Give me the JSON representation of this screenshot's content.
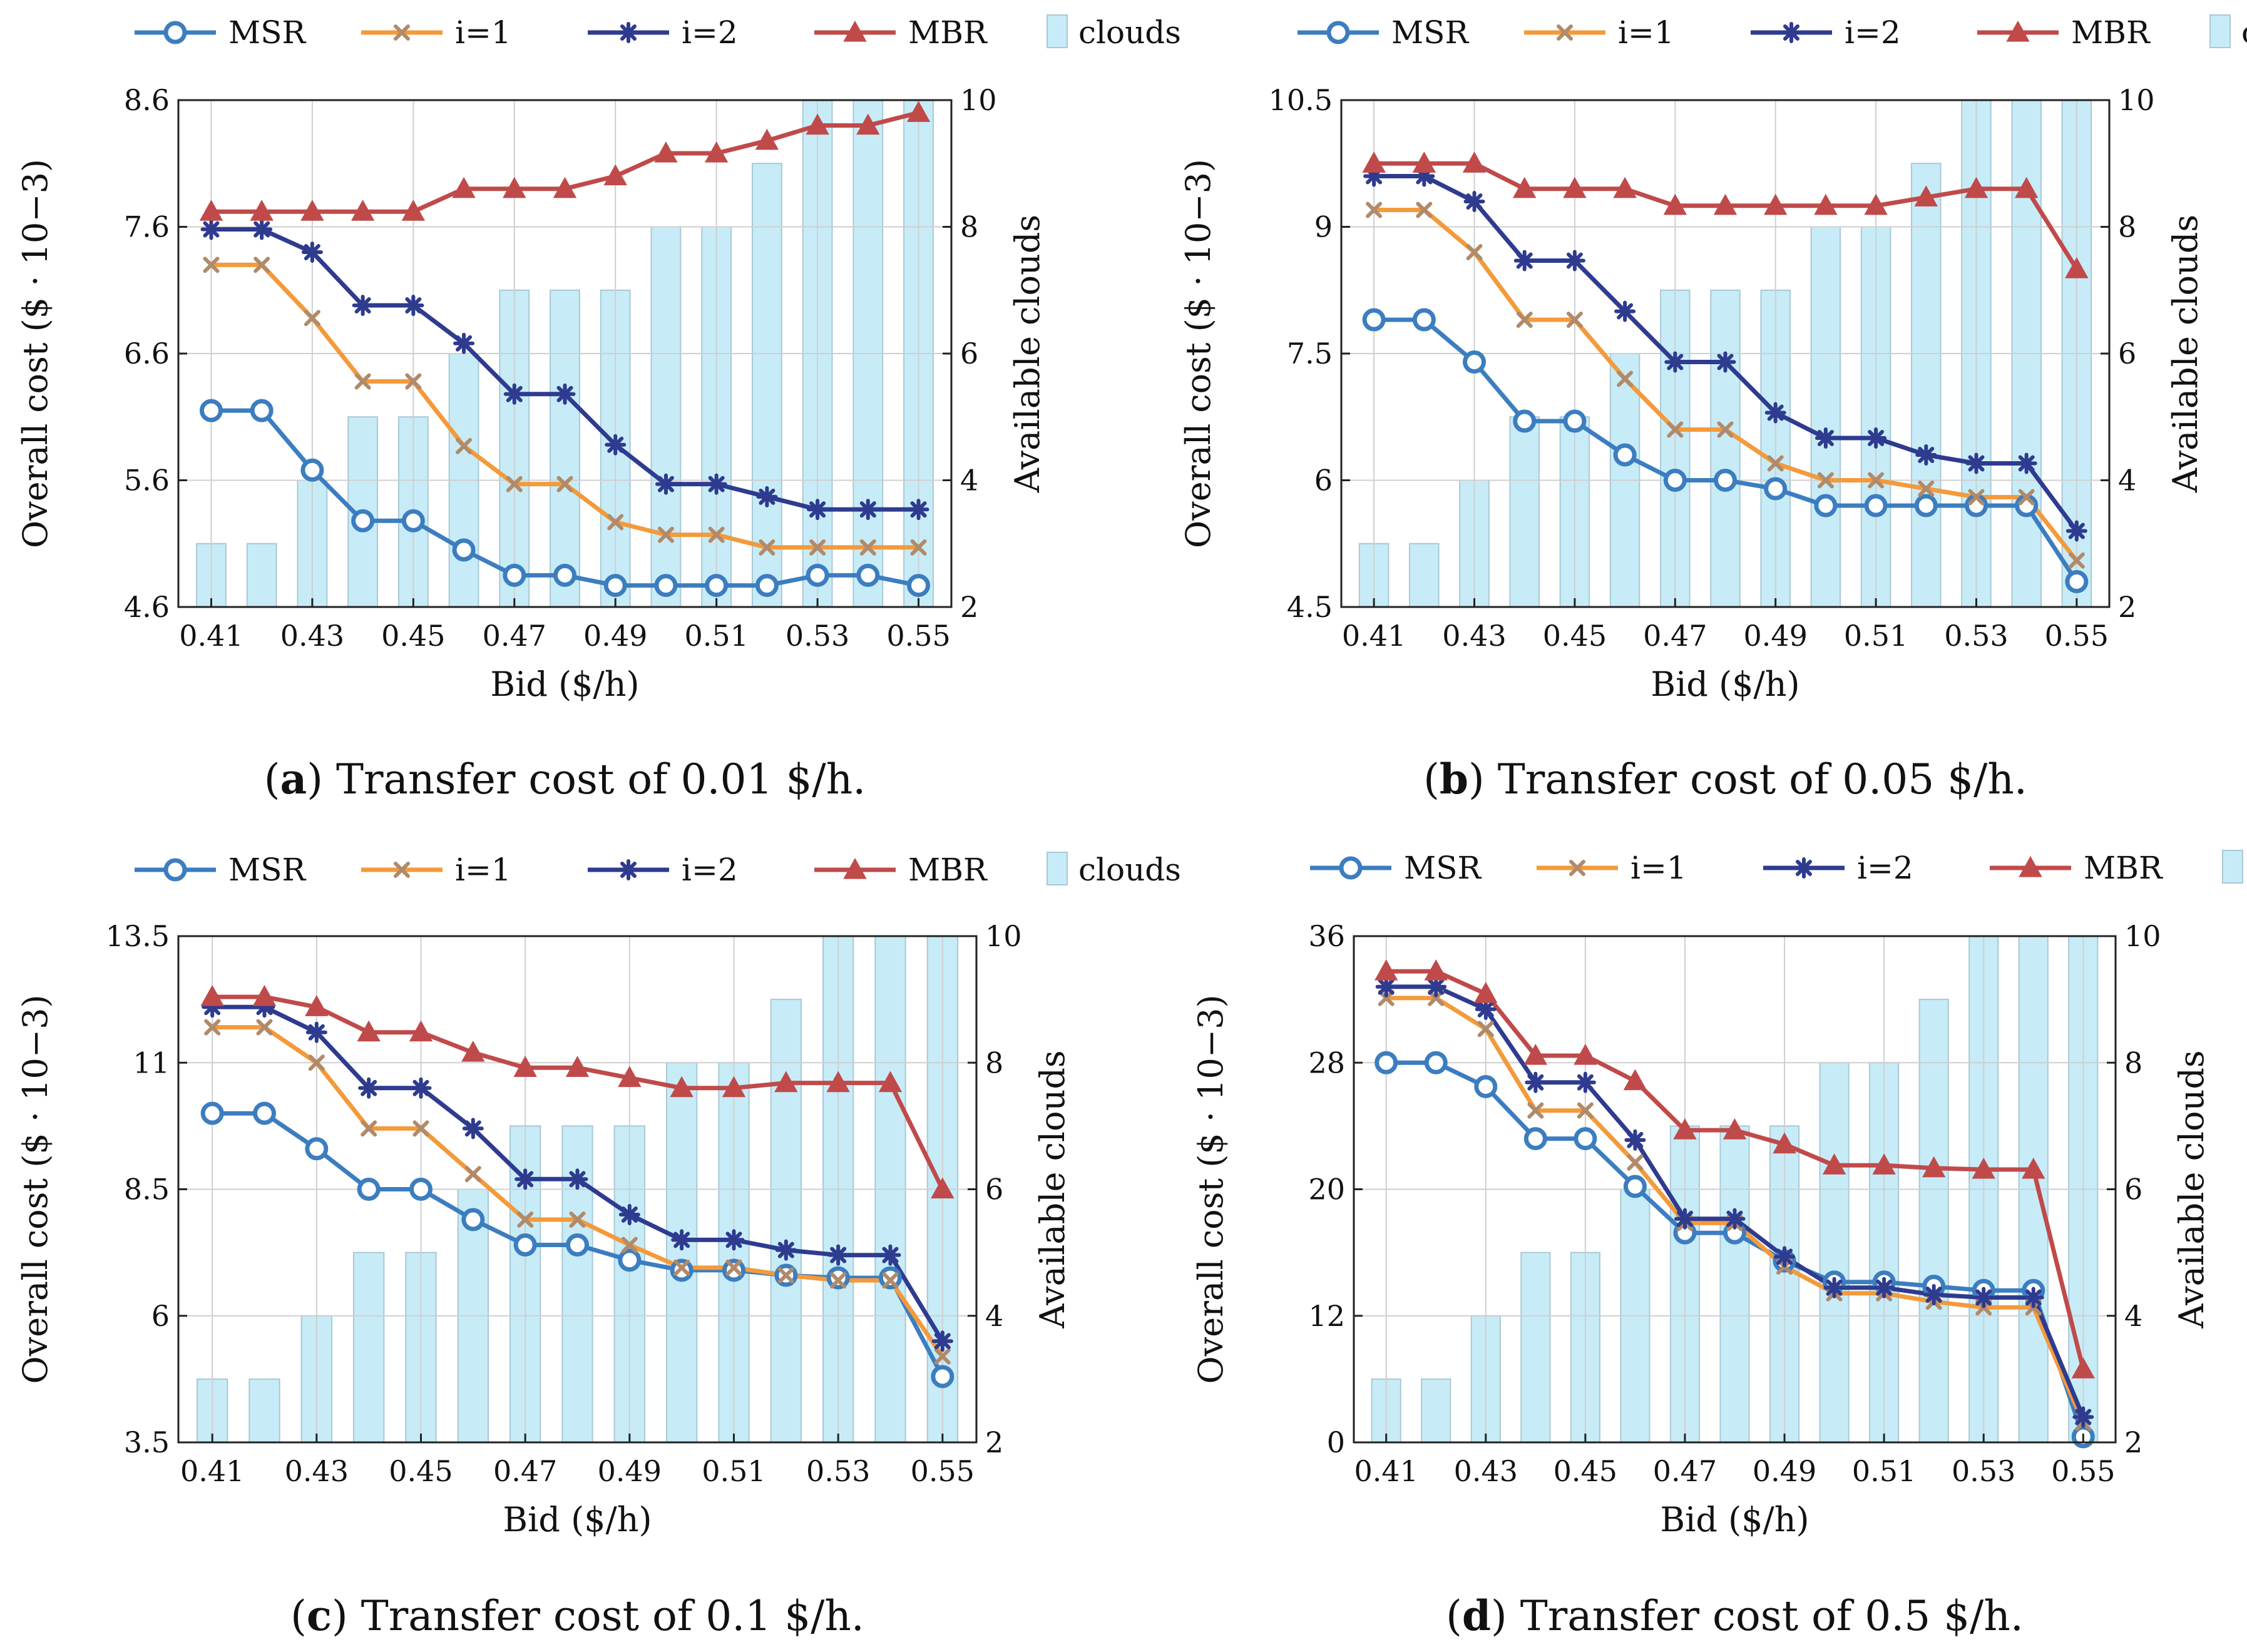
{
  "colors": {
    "MSR": "#3c7dc0",
    "i=1": "#f39a3b",
    "i=2": "#2e3b8f",
    "MBR": "#c04a4a",
    "clouds_fill": "#c7ecf8",
    "clouds_edge": "#a9c8d6",
    "grid": "#cfcfcf"
  },
  "chart_data": [
    {
      "type": "line",
      "panel_letter": "a",
      "caption": "Transfer cost of 0.01 $/h.",
      "x": [
        0.41,
        0.42,
        0.43,
        0.44,
        0.45,
        0.46,
        0.47,
        0.48,
        0.49,
        0.5,
        0.51,
        0.52,
        0.53,
        0.54,
        0.55
      ],
      "xticks": [
        "0.41",
        "0.43",
        "0.45",
        "0.47",
        "0.49",
        "0.51",
        "0.53",
        "0.55"
      ],
      "xlabel": "Bid ($/h)",
      "ylabel": "Overall cost ($ · 10−3)",
      "ylim": [
        4.6,
        8.6
      ],
      "yticks": [
        "4.6",
        "5.6",
        "6.6",
        "7.6",
        "8.6"
      ],
      "y2label": "Available clouds",
      "y2lim": [
        2,
        10
      ],
      "y2ticks": [
        "2",
        "4",
        "6",
        "8",
        "10"
      ],
      "series": [
        {
          "name": "MSR",
          "values": [
            6.15,
            6.15,
            5.68,
            5.28,
            5.28,
            5.05,
            4.85,
            4.85,
            4.77,
            4.77,
            4.77,
            4.77,
            4.85,
            4.85,
            4.77
          ]
        },
        {
          "name": "i=1",
          "values": [
            7.3,
            7.3,
            6.88,
            6.38,
            6.38,
            5.87,
            5.57,
            5.57,
            5.27,
            5.17,
            5.17,
            5.07,
            5.07,
            5.07,
            5.07
          ]
        },
        {
          "name": "i=2",
          "values": [
            7.58,
            7.58,
            7.4,
            6.98,
            6.98,
            6.68,
            6.28,
            6.28,
            5.88,
            5.57,
            5.57,
            5.47,
            5.37,
            5.37,
            5.37
          ]
        },
        {
          "name": "MBR",
          "values": [
            7.72,
            7.72,
            7.72,
            7.72,
            7.72,
            7.9,
            7.9,
            7.9,
            8.0,
            8.18,
            8.18,
            8.28,
            8.4,
            8.4,
            8.5
          ]
        }
      ],
      "clouds": {
        "name": "clouds",
        "values": [
          3,
          3,
          4,
          5,
          5,
          6,
          7,
          7,
          7,
          8,
          8,
          9,
          10,
          10,
          10
        ]
      }
    },
    {
      "type": "line",
      "panel_letter": "b",
      "caption": "Transfer cost of 0.05 $/h.",
      "x": [
        0.41,
        0.42,
        0.43,
        0.44,
        0.45,
        0.46,
        0.47,
        0.48,
        0.49,
        0.5,
        0.51,
        0.52,
        0.53,
        0.54,
        0.55
      ],
      "xticks": [
        "0.41",
        "0.43",
        "0.45",
        "0.47",
        "0.49",
        "0.51",
        "0.53",
        "0.55"
      ],
      "xlabel": "Bid ($/h)",
      "ylabel": "Overall cost ($ · 10−3)",
      "ylim": [
        4.5,
        10.5
      ],
      "yticks": [
        "4.5",
        "6",
        "7.5",
        "9",
        "10.5"
      ],
      "y2label": "Available clouds",
      "y2lim": [
        2,
        10
      ],
      "y2ticks": [
        "2",
        "4",
        "6",
        "8",
        "10"
      ],
      "series": [
        {
          "name": "MSR",
          "values": [
            7.9,
            7.9,
            7.4,
            6.7,
            6.7,
            6.3,
            6.0,
            6.0,
            5.9,
            5.7,
            5.7,
            5.7,
            5.7,
            5.7,
            4.8
          ]
        },
        {
          "name": "i=1",
          "values": [
            9.2,
            9.2,
            8.7,
            7.9,
            7.9,
            7.2,
            6.6,
            6.6,
            6.2,
            6.0,
            6.0,
            5.9,
            5.8,
            5.8,
            5.05
          ]
        },
        {
          "name": "i=2",
          "values": [
            9.6,
            9.6,
            9.3,
            8.6,
            8.6,
            8.0,
            7.4,
            7.4,
            6.8,
            6.5,
            6.5,
            6.3,
            6.2,
            6.2,
            5.4
          ]
        },
        {
          "name": "MBR",
          "values": [
            9.75,
            9.75,
            9.75,
            9.45,
            9.45,
            9.45,
            9.25,
            9.25,
            9.25,
            9.25,
            9.25,
            9.35,
            9.45,
            9.45,
            8.5
          ]
        }
      ],
      "clouds": {
        "name": "clouds",
        "values": [
          3,
          3,
          4,
          5,
          5,
          6,
          7,
          7,
          7,
          8,
          8,
          9,
          10,
          10,
          10
        ]
      }
    },
    {
      "type": "line",
      "panel_letter": "c",
      "caption": "Transfer cost of 0.1 $/h.",
      "x": [
        0.41,
        0.42,
        0.43,
        0.44,
        0.45,
        0.46,
        0.47,
        0.48,
        0.49,
        0.5,
        0.51,
        0.52,
        0.53,
        0.54,
        0.55
      ],
      "xticks": [
        "0.41",
        "0.43",
        "0.45",
        "0.47",
        "0.49",
        "0.51",
        "0.53",
        "0.55"
      ],
      "xlabel": "Bid ($/h)",
      "ylabel": "Overall cost ($ · 10−3)",
      "ylim": [
        3.5,
        13.5
      ],
      "yticks": [
        "3.5",
        "6",
        "8.5",
        "11",
        "13.5"
      ],
      "y2label": "Available clouds",
      "y2lim": [
        2,
        10
      ],
      "y2ticks": [
        "2",
        "4",
        "6",
        "8",
        "10"
      ],
      "series": [
        {
          "name": "MSR",
          "values": [
            10.0,
            10.0,
            9.3,
            8.5,
            8.5,
            7.9,
            7.4,
            7.4,
            7.1,
            6.9,
            6.9,
            6.8,
            6.75,
            6.75,
            4.8
          ]
        },
        {
          "name": "i=1",
          "values": [
            11.7,
            11.7,
            11.0,
            9.7,
            9.7,
            8.8,
            7.9,
            7.9,
            7.4,
            6.95,
            6.95,
            6.8,
            6.7,
            6.7,
            5.2
          ]
        },
        {
          "name": "i=2",
          "values": [
            12.1,
            12.1,
            11.6,
            10.5,
            10.5,
            9.7,
            8.7,
            8.7,
            8.0,
            7.5,
            7.5,
            7.3,
            7.2,
            7.2,
            5.5
          ]
        },
        {
          "name": "MBR",
          "values": [
            12.3,
            12.3,
            12.1,
            11.6,
            11.6,
            11.2,
            10.9,
            10.9,
            10.7,
            10.5,
            10.5,
            10.6,
            10.6,
            10.6,
            8.5
          ]
        }
      ],
      "clouds": {
        "name": "clouds",
        "values": [
          3,
          3,
          4,
          5,
          5,
          6,
          7,
          7,
          7,
          8,
          8,
          9,
          10,
          10,
          10
        ]
      }
    },
    {
      "type": "line",
      "panel_letter": "d",
      "caption": "Transfer cost of 0.5 $/h.",
      "x": [
        0.41,
        0.42,
        0.43,
        0.44,
        0.45,
        0.46,
        0.47,
        0.48,
        0.49,
        0.5,
        0.51,
        0.52,
        0.53,
        0.54,
        0.55
      ],
      "xticks": [
        "0.41",
        "0.43",
        "0.45",
        "0.47",
        "0.49",
        "0.51",
        "0.53",
        "0.55"
      ],
      "xlabel": "Bid ($/h)",
      "ylabel": "Overall cost ($ · 10−3)",
      "ylim": [
        0,
        36
      ],
      "yticks": [
        "0",
        "12",
        "20",
        "28",
        "36"
      ],
      "y2label": "Available clouds",
      "y2lim": [
        2,
        10
      ],
      "y2ticks": [
        "2",
        "4",
        "6",
        "8",
        "10"
      ],
      "series": [
        {
          "name": "MSR",
          "values": [
            27.0,
            27.0,
            25.3,
            21.6,
            21.6,
            18.2,
            14.9,
            14.9,
            12.9,
            11.4,
            11.4,
            11.1,
            10.8,
            10.8,
            0.4
          ]
        },
        {
          "name": "i=1",
          "values": [
            31.6,
            31.6,
            29.4,
            23.6,
            23.6,
            19.9,
            15.6,
            15.6,
            12.5,
            10.6,
            10.6,
            10.0,
            9.6,
            9.6,
            1.4
          ]
        },
        {
          "name": "i=2",
          "values": [
            32.4,
            32.4,
            30.8,
            25.6,
            25.6,
            21.5,
            15.9,
            15.9,
            13.2,
            11.0,
            11.0,
            10.5,
            10.3,
            10.3,
            1.8
          ]
        },
        {
          "name": "MBR",
          "values": [
            33.5,
            33.5,
            31.9,
            27.5,
            27.5,
            25.7,
            22.2,
            22.2,
            21.2,
            19.7,
            19.7,
            19.5,
            19.4,
            19.4,
            5.2
          ]
        }
      ],
      "clouds": {
        "name": "clouds",
        "values": [
          3,
          3,
          4,
          5,
          5,
          6,
          7,
          7,
          7,
          8,
          8,
          9,
          10,
          10,
          10
        ]
      }
    }
  ]
}
